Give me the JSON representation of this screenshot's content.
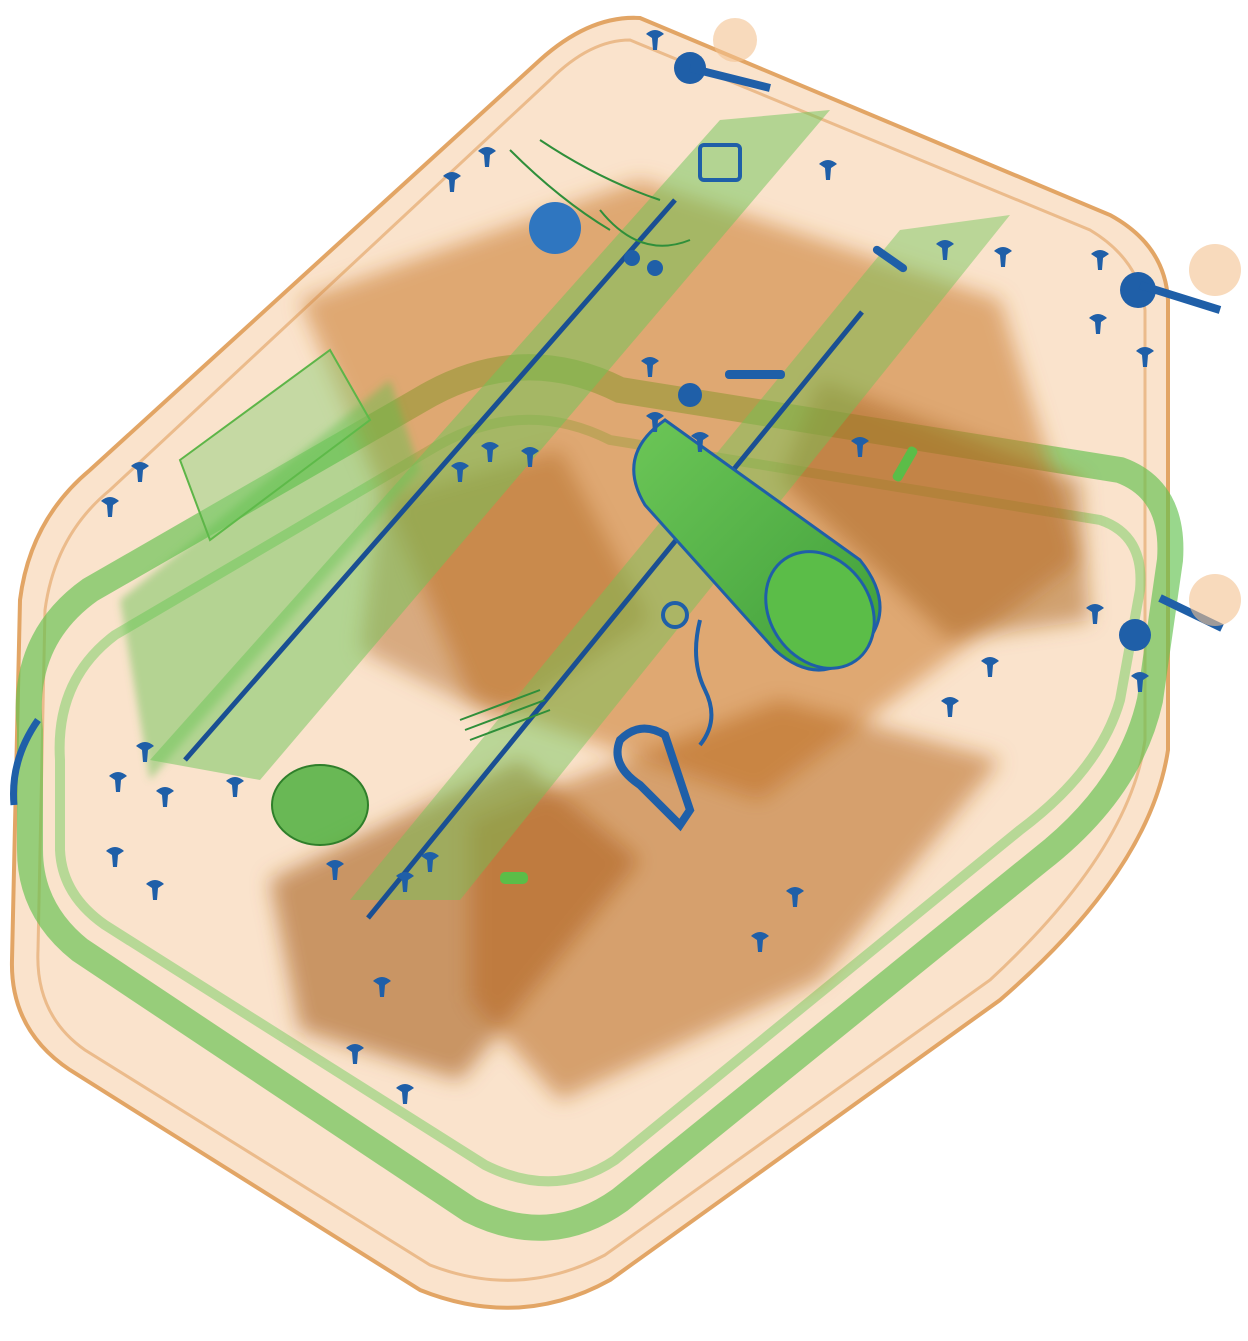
{
  "image": {
    "kind": "x-ray baggage scan",
    "subject": "suitcase",
    "palette": {
      "background": "#ffffff",
      "organic": "#d9822b",
      "organic_light": "#f3c28f",
      "inorganic": "#55b846",
      "metal": "#1f5fa8",
      "metal_dark": "#0f3d7a"
    },
    "contents": [
      "suitcase-shell",
      "telescopic-handle-rails",
      "wheels",
      "shell-rivets",
      "cylindrical-canister",
      "clothing-items",
      "zipper-pulls",
      "small-metal-parts"
    ]
  }
}
